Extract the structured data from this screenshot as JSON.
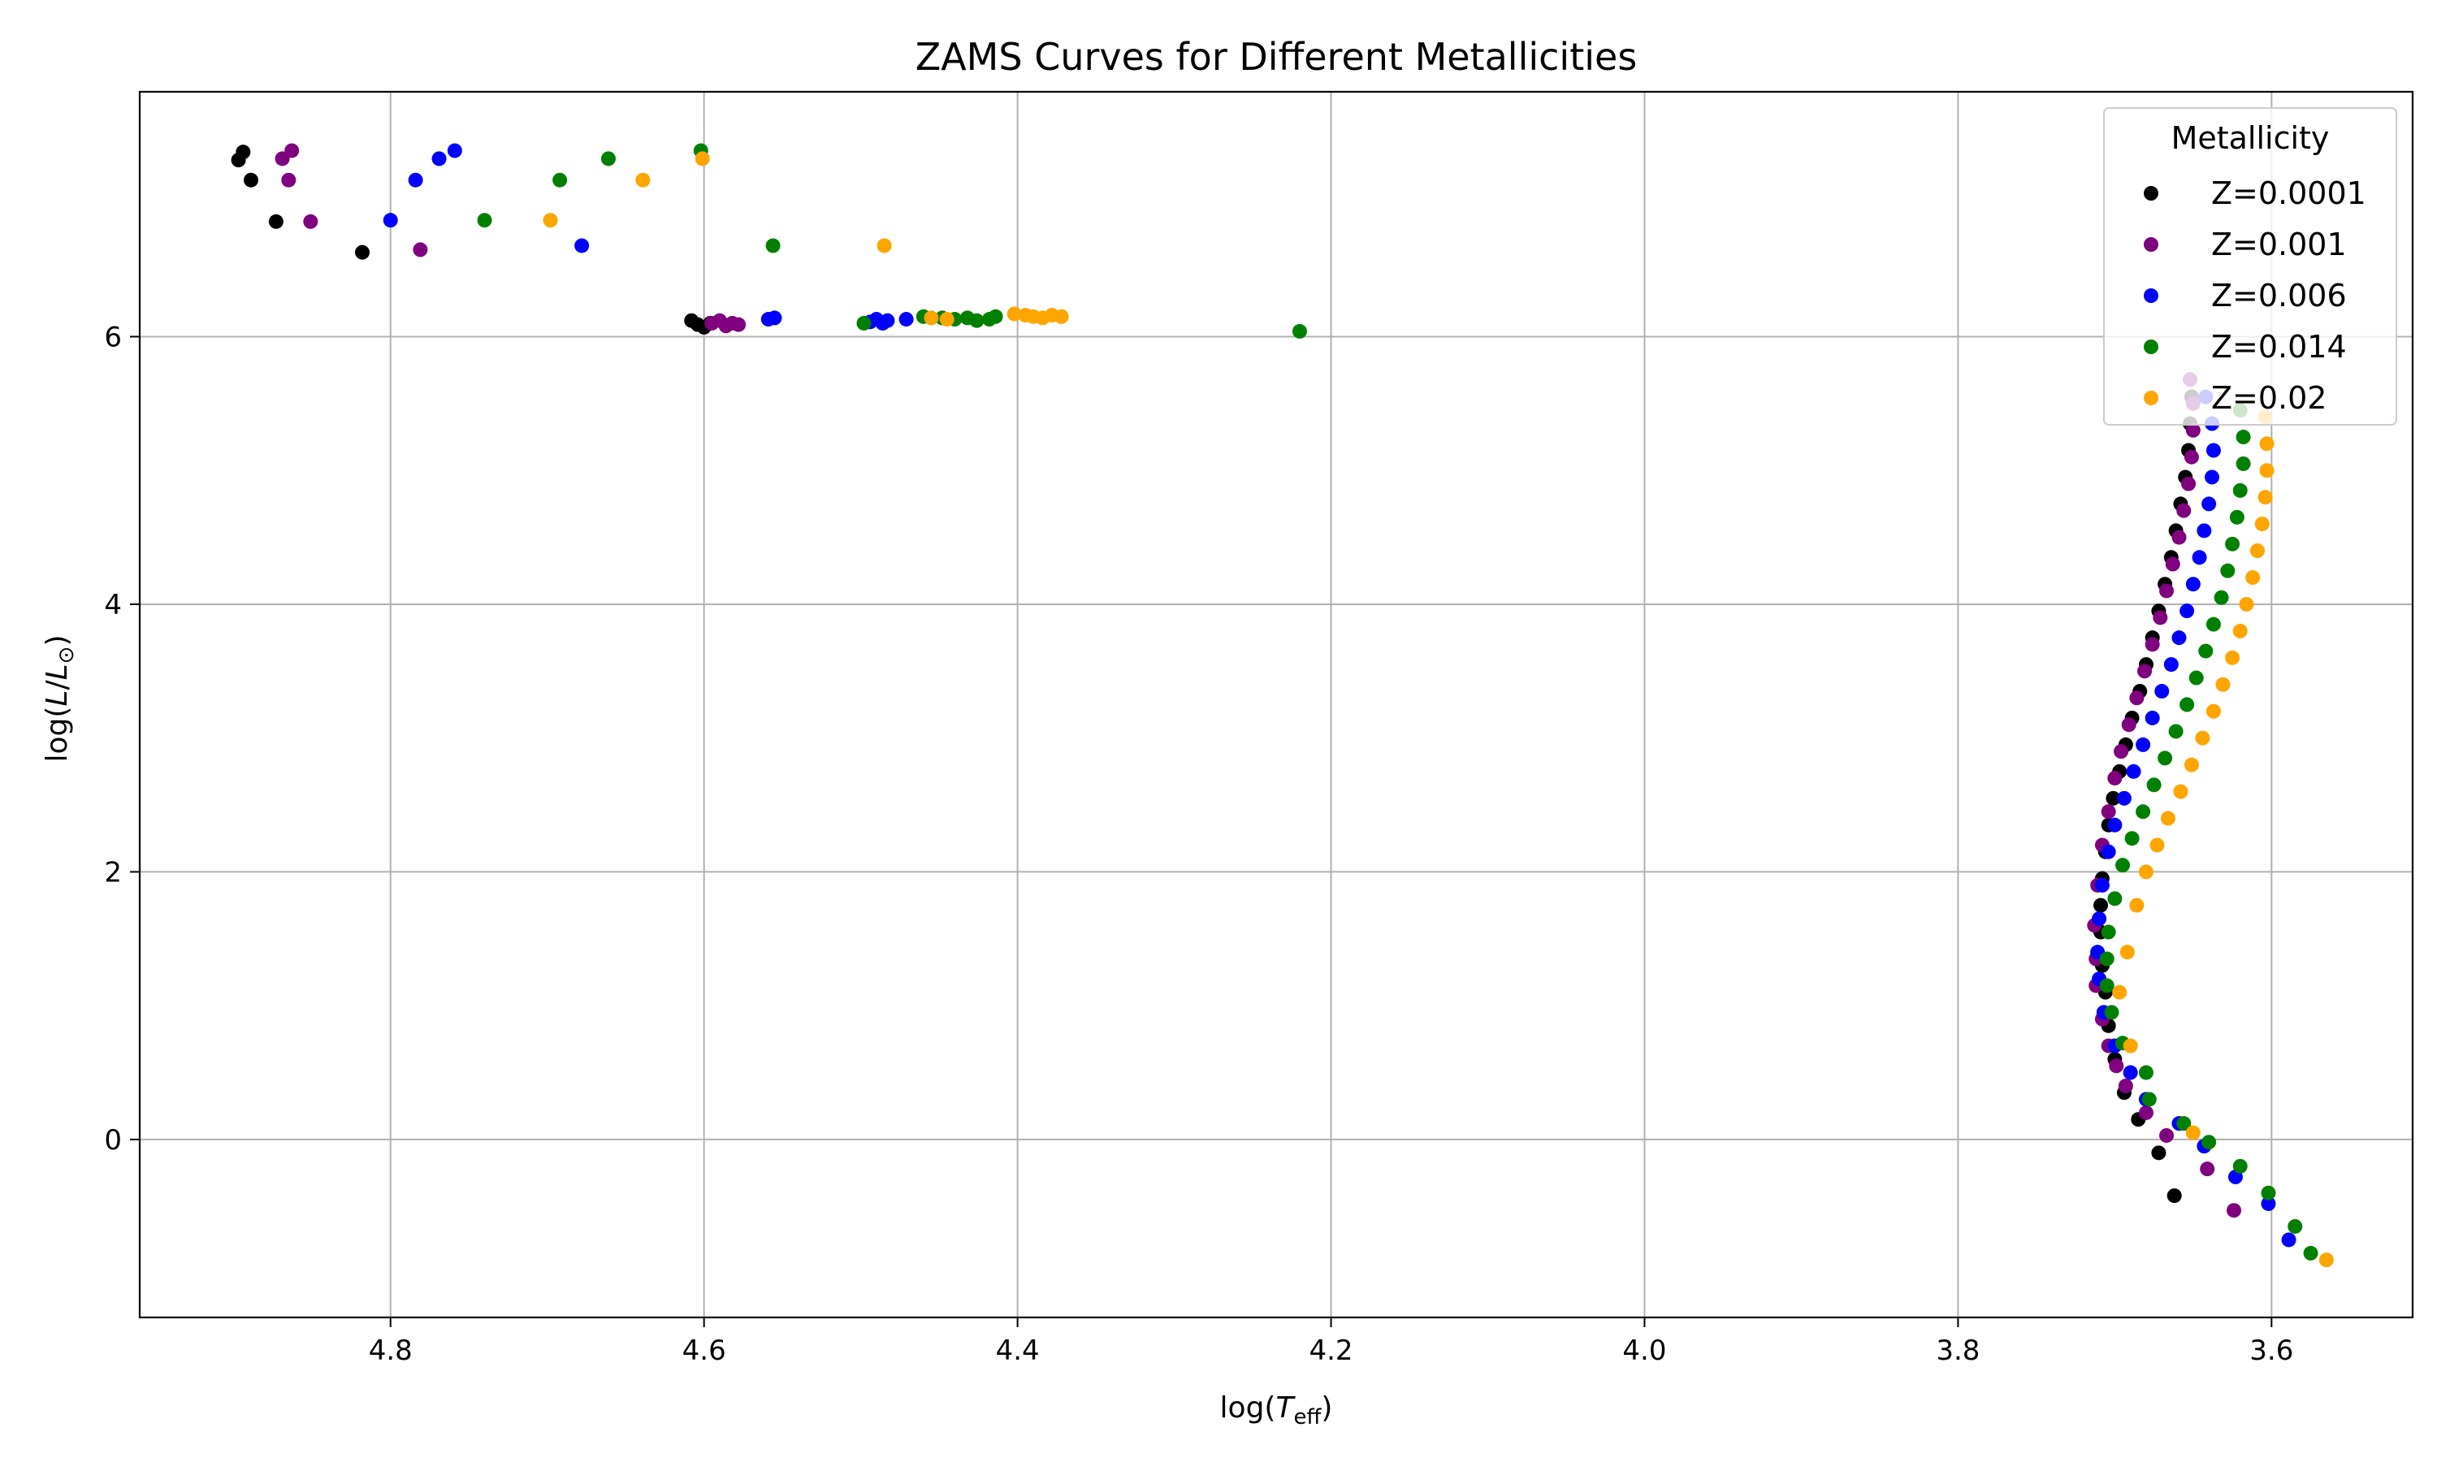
{
  "chart_data": {
    "type": "scatter",
    "title": "ZAMS Curves for Different Metallicities",
    "xlabel": "log(T_eff)",
    "ylabel": "log(L/L_⊙)",
    "xlim": [
      4.96,
      3.51
    ],
    "ylim": [
      -1.33,
      7.83
    ],
    "x_inverted": true,
    "grid": true,
    "legend_title": "Metallicity",
    "legend_position": "top-right",
    "x_ticks": [
      4.8,
      4.6,
      4.4,
      4.2,
      4.0,
      3.8,
      3.6
    ],
    "y_ticks": [
      0,
      2,
      4,
      6
    ],
    "series": [
      {
        "name": "Z=0.0001",
        "color": "#000000",
        "points": [
          [
            4.894,
            7.38
          ],
          [
            4.897,
            7.32
          ],
          [
            4.889,
            7.17
          ],
          [
            4.873,
            6.86
          ],
          [
            4.818,
            6.63
          ],
          [
            4.608,
            6.12
          ],
          [
            4.604,
            6.09
          ],
          [
            4.6,
            6.07
          ],
          [
            4.596,
            6.1
          ],
          [
            3.651,
            5.55
          ],
          [
            3.652,
            5.35
          ],
          [
            3.653,
            5.15
          ],
          [
            3.655,
            4.95
          ],
          [
            3.658,
            4.75
          ],
          [
            3.661,
            4.55
          ],
          [
            3.664,
            4.35
          ],
          [
            3.668,
            4.15
          ],
          [
            3.672,
            3.95
          ],
          [
            3.676,
            3.75
          ],
          [
            3.68,
            3.55
          ],
          [
            3.684,
            3.35
          ],
          [
            3.689,
            3.15
          ],
          [
            3.693,
            2.95
          ],
          [
            3.697,
            2.75
          ],
          [
            3.701,
            2.55
          ],
          [
            3.704,
            2.35
          ],
          [
            3.706,
            2.15
          ],
          [
            3.708,
            1.95
          ],
          [
            3.709,
            1.75
          ],
          [
            3.709,
            1.55
          ],
          [
            3.708,
            1.3
          ],
          [
            3.706,
            1.1
          ],
          [
            3.704,
            0.85
          ],
          [
            3.7,
            0.6
          ],
          [
            3.694,
            0.35
          ],
          [
            3.685,
            0.15
          ],
          [
            3.672,
            -0.1
          ],
          [
            3.662,
            -0.42
          ]
        ]
      },
      {
        "name": "Z=0.001",
        "color": "#800080",
        "points": [
          [
            4.863,
            7.39
          ],
          [
            4.869,
            7.33
          ],
          [
            4.865,
            7.17
          ],
          [
            4.851,
            6.86
          ],
          [
            4.781,
            6.65
          ],
          [
            4.595,
            6.1
          ],
          [
            4.59,
            6.12
          ],
          [
            4.586,
            6.08
          ],
          [
            4.582,
            6.1
          ],
          [
            4.578,
            6.09
          ],
          [
            3.652,
            5.68
          ],
          [
            3.65,
            5.5
          ],
          [
            3.65,
            5.3
          ],
          [
            3.651,
            5.1
          ],
          [
            3.653,
            4.9
          ],
          [
            3.656,
            4.7
          ],
          [
            3.659,
            4.5
          ],
          [
            3.663,
            4.3
          ],
          [
            3.667,
            4.1
          ],
          [
            3.671,
            3.9
          ],
          [
            3.676,
            3.7
          ],
          [
            3.681,
            3.5
          ],
          [
            3.686,
            3.3
          ],
          [
            3.691,
            3.1
          ],
          [
            3.696,
            2.9
          ],
          [
            3.7,
            2.7
          ],
          [
            3.704,
            2.45
          ],
          [
            3.708,
            2.2
          ],
          [
            3.711,
            1.9
          ],
          [
            3.713,
            1.6
          ],
          [
            3.712,
            1.35
          ],
          [
            3.712,
            1.15
          ],
          [
            3.708,
            0.9
          ],
          [
            3.704,
            0.7
          ],
          [
            3.699,
            0.55
          ],
          [
            3.693,
            0.4
          ],
          [
            3.68,
            0.2
          ],
          [
            3.667,
            0.03
          ],
          [
            3.641,
            -0.22
          ],
          [
            3.624,
            -0.53
          ]
        ]
      },
      {
        "name": "Z=0.006",
        "color": "#0000ff",
        "points": [
          [
            4.759,
            7.39
          ],
          [
            4.769,
            7.33
          ],
          [
            4.784,
            7.17
          ],
          [
            4.8,
            6.87
          ],
          [
            4.678,
            6.68
          ],
          [
            4.559,
            6.13
          ],
          [
            4.555,
            6.14
          ],
          [
            4.494,
            6.11
          ],
          [
            4.49,
            6.13
          ],
          [
            4.486,
            6.1
          ],
          [
            4.483,
            6.12
          ],
          [
            4.471,
            6.13
          ],
          [
            3.642,
            5.55
          ],
          [
            3.638,
            5.35
          ],
          [
            3.637,
            5.15
          ],
          [
            3.638,
            4.95
          ],
          [
            3.64,
            4.75
          ],
          [
            3.643,
            4.55
          ],
          [
            3.646,
            4.35
          ],
          [
            3.65,
            4.15
          ],
          [
            3.654,
            3.95
          ],
          [
            3.659,
            3.75
          ],
          [
            3.664,
            3.55
          ],
          [
            3.67,
            3.35
          ],
          [
            3.676,
            3.15
          ],
          [
            3.682,
            2.95
          ],
          [
            3.688,
            2.75
          ],
          [
            3.694,
            2.55
          ],
          [
            3.7,
            2.35
          ],
          [
            3.704,
            2.15
          ],
          [
            3.708,
            1.9
          ],
          [
            3.71,
            1.65
          ],
          [
            3.711,
            1.4
          ],
          [
            3.71,
            1.2
          ],
          [
            3.707,
            0.95
          ],
          [
            3.7,
            0.7
          ],
          [
            3.69,
            0.5
          ],
          [
            3.68,
            0.3
          ],
          [
            3.659,
            0.12
          ],
          [
            3.643,
            -0.05
          ],
          [
            3.623,
            -0.28
          ],
          [
            3.602,
            -0.48
          ],
          [
            3.589,
            -0.75
          ]
        ]
      },
      {
        "name": "Z=0.014",
        "color": "#008000",
        "points": [
          [
            4.602,
            7.39
          ],
          [
            4.661,
            7.33
          ],
          [
            4.692,
            7.17
          ],
          [
            4.74,
            6.87
          ],
          [
            4.556,
            6.68
          ],
          [
            4.498,
            6.1
          ],
          [
            4.46,
            6.15
          ],
          [
            4.448,
            6.14
          ],
          [
            4.44,
            6.13
          ],
          [
            4.432,
            6.14
          ],
          [
            4.426,
            6.12
          ],
          [
            4.418,
            6.13
          ],
          [
            4.414,
            6.15
          ],
          [
            4.22,
            6.04
          ],
          [
            3.62,
            5.45
          ],
          [
            3.618,
            5.25
          ],
          [
            3.618,
            5.05
          ],
          [
            3.62,
            4.85
          ],
          [
            3.622,
            4.65
          ],
          [
            3.625,
            4.45
          ],
          [
            3.628,
            4.25
          ],
          [
            3.632,
            4.05
          ],
          [
            3.637,
            3.85
          ],
          [
            3.642,
            3.65
          ],
          [
            3.648,
            3.45
          ],
          [
            3.654,
            3.25
          ],
          [
            3.661,
            3.05
          ],
          [
            3.668,
            2.85
          ],
          [
            3.675,
            2.65
          ],
          [
            3.682,
            2.45
          ],
          [
            3.689,
            2.25
          ],
          [
            3.695,
            2.05
          ],
          [
            3.7,
            1.8
          ],
          [
            3.704,
            1.55
          ],
          [
            3.705,
            1.35
          ],
          [
            3.705,
            1.15
          ],
          [
            3.702,
            0.95
          ],
          [
            3.695,
            0.72
          ],
          [
            3.68,
            0.5
          ],
          [
            3.678,
            0.3
          ],
          [
            3.656,
            0.12
          ],
          [
            3.64,
            -0.02
          ],
          [
            3.62,
            -0.2
          ],
          [
            3.602,
            -0.4
          ],
          [
            3.585,
            -0.65
          ],
          [
            3.575,
            -0.85
          ]
        ]
      },
      {
        "name": "Z=0.02",
        "color": "#ffa500",
        "points": [
          [
            4.601,
            7.33
          ],
          [
            4.639,
            7.17
          ],
          [
            4.698,
            6.87
          ],
          [
            4.485,
            6.68
          ],
          [
            4.455,
            6.14
          ],
          [
            4.445,
            6.13
          ],
          [
            4.402,
            6.17
          ],
          [
            4.395,
            6.16
          ],
          [
            4.39,
            6.15
          ],
          [
            4.384,
            6.14
          ],
          [
            4.378,
            6.16
          ],
          [
            4.372,
            6.15
          ],
          [
            3.604,
            5.4
          ],
          [
            3.603,
            5.2
          ],
          [
            3.603,
            5.0
          ],
          [
            3.604,
            4.8
          ],
          [
            3.606,
            4.6
          ],
          [
            3.609,
            4.4
          ],
          [
            3.612,
            4.2
          ],
          [
            3.616,
            4.0
          ],
          [
            3.62,
            3.8
          ],
          [
            3.625,
            3.6
          ],
          [
            3.631,
            3.4
          ],
          [
            3.637,
            3.2
          ],
          [
            3.644,
            3.0
          ],
          [
            3.651,
            2.8
          ],
          [
            3.658,
            2.6
          ],
          [
            3.666,
            2.4
          ],
          [
            3.673,
            2.2
          ],
          [
            3.68,
            2.0
          ],
          [
            3.686,
            1.75
          ],
          [
            3.692,
            1.4
          ],
          [
            3.697,
            1.1
          ],
          [
            3.69,
            0.7
          ],
          [
            3.65,
            0.05
          ],
          [
            3.565,
            -0.9
          ]
        ]
      }
    ]
  }
}
